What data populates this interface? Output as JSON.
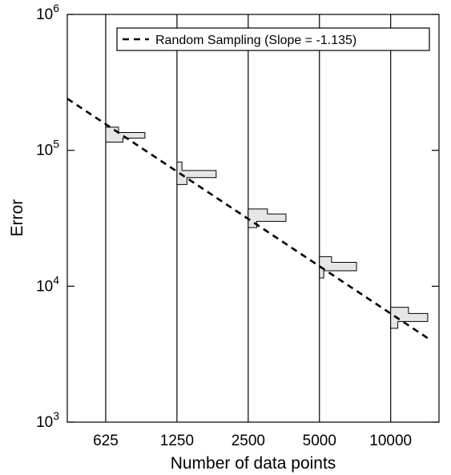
{
  "chart_data": {
    "type": "line",
    "title": "",
    "xlabel": "Number of data points",
    "ylabel": "Error",
    "x_scale": "log2",
    "y_scale": "log10",
    "x_categories": [
      "625",
      "1250",
      "2500",
      "5000",
      "10000"
    ],
    "x_values": [
      625,
      1250,
      2500,
      5000,
      10000
    ],
    "ylim": [
      1000,
      1000000
    ],
    "y_ticks": [
      {
        "base": "10",
        "exp": "3"
      },
      {
        "base": "10",
        "exp": "4"
      },
      {
        "base": "10",
        "exp": "5"
      },
      {
        "base": "10",
        "exp": "6"
      }
    ],
    "grid": false,
    "legend": {
      "placement": "top-right",
      "entries": [
        "Random Sampling (Slope = -1.135)"
      ]
    },
    "series": [
      {
        "name": "Random Sampling (Slope = -1.135)",
        "style": "dashed",
        "color": "#000000",
        "x": [
          430,
          14800
        ],
        "y": [
          240000,
          4000
        ]
      }
    ],
    "distributions": [
      {
        "x": 625,
        "steps": [
          {
            "from": 115000,
            "to": 123000,
            "w": 0.24
          },
          {
            "from": 123000,
            "to": 135000,
            "w": 0.55
          },
          {
            "from": 135000,
            "to": 148000,
            "w": 0.18
          }
        ]
      },
      {
        "x": 1250,
        "steps": [
          {
            "from": 56000,
            "to": 63000,
            "w": 0.14
          },
          {
            "from": 63000,
            "to": 71000,
            "w": 0.55
          },
          {
            "from": 71000,
            "to": 82000,
            "w": 0.07
          }
        ]
      },
      {
        "x": 2500,
        "steps": [
          {
            "from": 27000,
            "to": 30000,
            "w": 0.12
          },
          {
            "from": 30000,
            "to": 34000,
            "w": 0.53
          },
          {
            "from": 34000,
            "to": 37000,
            "w": 0.27
          }
        ]
      },
      {
        "x": 5000,
        "steps": [
          {
            "from": 11500,
            "to": 13000,
            "w": 0.06
          },
          {
            "from": 13000,
            "to": 15000,
            "w": 0.52
          },
          {
            "from": 15000,
            "to": 16500,
            "w": 0.17
          }
        ]
      },
      {
        "x": 10000,
        "steps": [
          {
            "from": 4900,
            "to": 5500,
            "w": 0.1
          },
          {
            "from": 5500,
            "to": 6300,
            "w": 0.52
          },
          {
            "from": 6300,
            "to": 7000,
            "w": 0.25
          }
        ]
      }
    ],
    "colors": {
      "axis": "#000000",
      "fill": "#e6e6e6",
      "edge": "#000000"
    }
  }
}
